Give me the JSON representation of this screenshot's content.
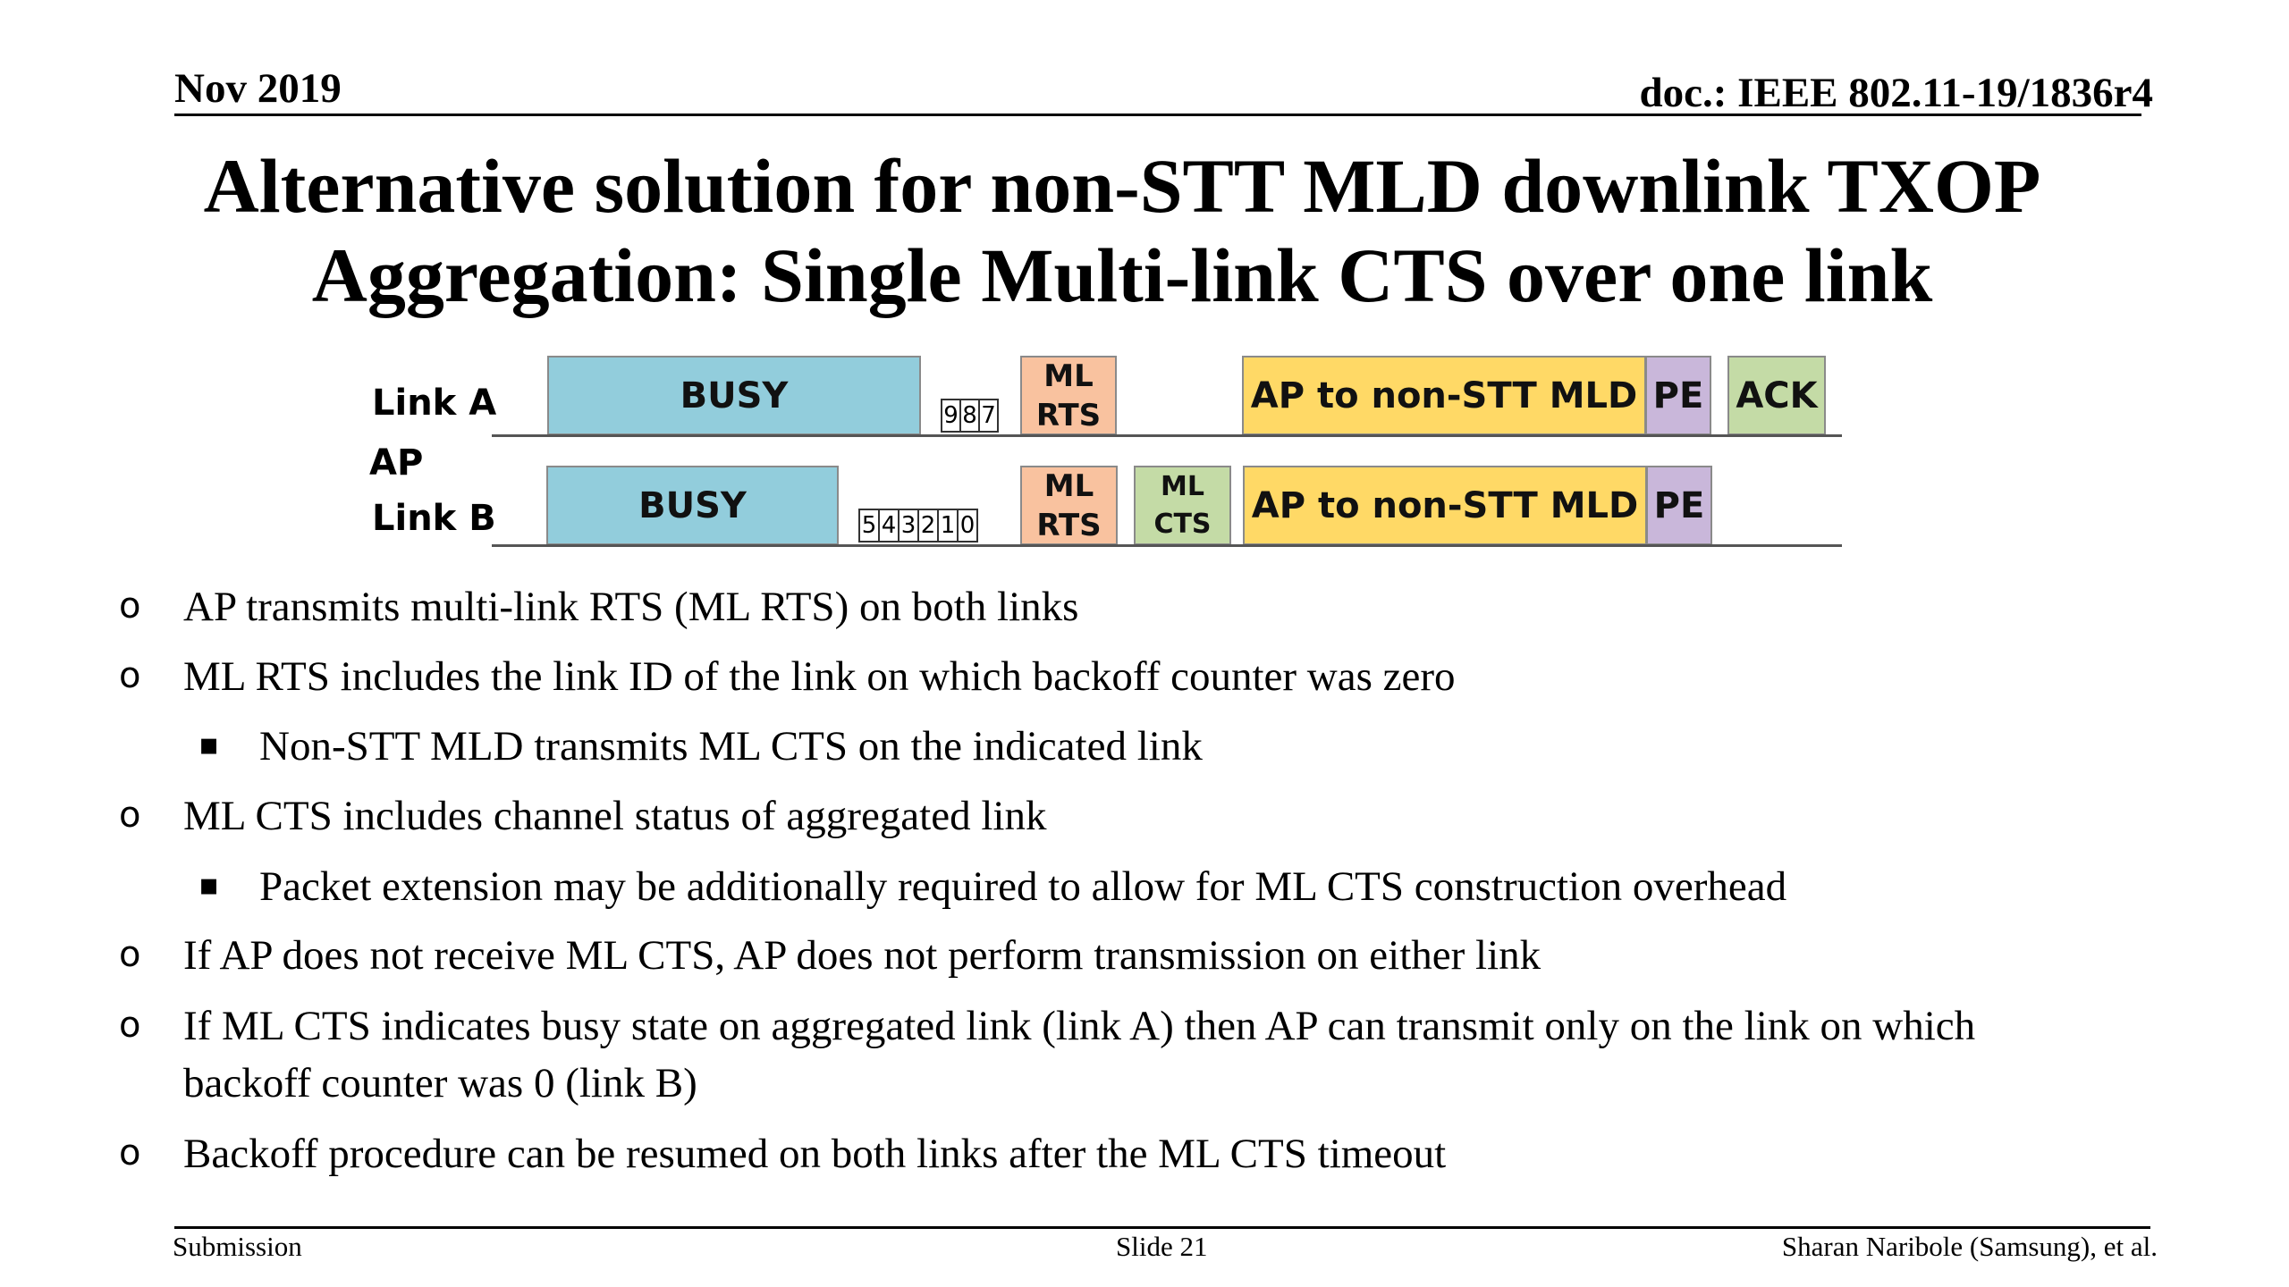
{
  "header": {
    "date": "Nov 2019",
    "doc_id": "doc.: IEEE 802.11-19/1836r4"
  },
  "title": {
    "line1": "Alternative solution for non-STT MLD downlink TXOP",
    "line2": "Aggregation: Single Multi-link CTS over one link"
  },
  "diagram": {
    "labels": {
      "link_a": "Link A",
      "ap": "AP",
      "link_b": "Link B"
    },
    "link_a": {
      "busy": "BUSY",
      "counters": [
        "9",
        "8",
        "7"
      ],
      "rts_line1": "ML",
      "rts_line2": "RTS",
      "data": "AP to non-STT MLD",
      "pe": "PE",
      "ack": "ACK"
    },
    "link_b": {
      "busy": "BUSY",
      "counters": [
        "5",
        "4",
        "3",
        "2",
        "1",
        "0"
      ],
      "rts_line1": "ML",
      "rts_line2": "RTS",
      "cts_line1": "ML",
      "cts_line2": "CTS",
      "data": "AP to non-STT MLD",
      "pe": "PE"
    },
    "colors": {
      "busy": "#92cddc",
      "rts": "#f9c29f",
      "cts": "#c4dba6",
      "data": "#ffd966",
      "pe": "#c9b7da",
      "ack": "#c4dba6"
    }
  },
  "bullets": [
    {
      "marker": "o",
      "text": "AP transmits multi-link RTS (ML RTS) on both links"
    },
    {
      "marker": "o",
      "text": "ML RTS includes the link ID of the link on which backoff counter was zero"
    },
    {
      "marker": "▪",
      "text": "Non-STT MLD transmits ML CTS on the indicated link"
    },
    {
      "marker": "o",
      "text": "ML CTS includes channel status of aggregated link"
    },
    {
      "marker": "▪",
      "text": "Packet extension may be additionally required to allow for ML CTS construction overhead"
    },
    {
      "marker": "o",
      "text": "If AP does not receive ML CTS, AP does not perform transmission on either link"
    },
    {
      "marker": "o",
      "text": "If ML CTS indicates busy state on aggregated link (link A) then AP can transmit only on the link on which"
    },
    {
      "marker": "",
      "text": "backoff counter was 0 (link B)"
    },
    {
      "marker": "o",
      "text": "Backoff procedure can be resumed on both links after the ML CTS timeout"
    }
  ],
  "footer": {
    "left": "Submission",
    "center": "Slide 21",
    "right": "Sharan Naribole (Samsung), et al."
  }
}
